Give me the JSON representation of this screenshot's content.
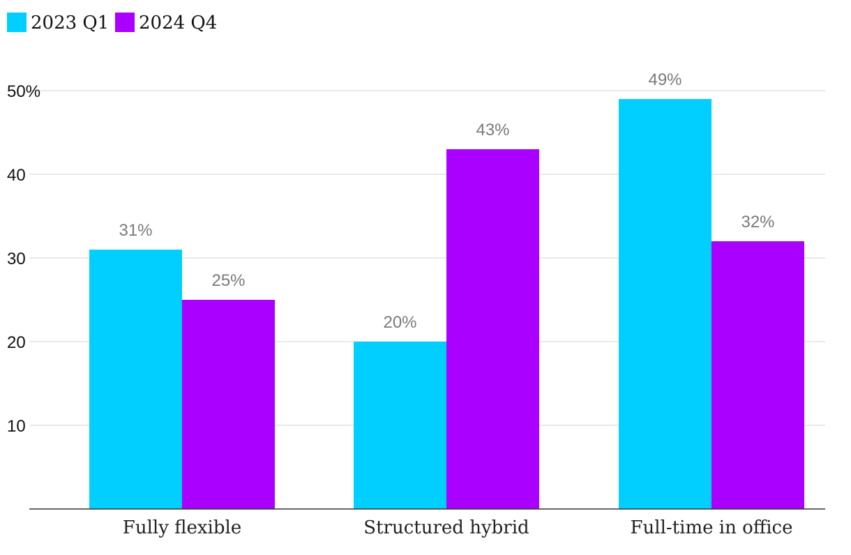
{
  "chart_data": {
    "type": "bar",
    "categories": [
      "Fully flexible",
      "Structured hybrid",
      "Full-time in office"
    ],
    "series": [
      {
        "name": "2023 Q1",
        "values": [
          31,
          20,
          49
        ],
        "color": "#00CFFF",
        "labels": [
          "31%",
          "20%",
          "49%"
        ]
      },
      {
        "name": "2024 Q4",
        "values": [
          25,
          43,
          32
        ],
        "color": "#AA00FF",
        "labels": [
          "25%",
          "43%",
          "32%"
        ]
      }
    ],
    "ylim": [
      0,
      50
    ],
    "yticks": [
      10,
      20,
      30,
      40,
      50
    ],
    "ytick_labels": [
      "10",
      "20",
      "30",
      "40",
      "50%"
    ],
    "grid": true,
    "legend_position": "top-left",
    "title": "",
    "xlabel": "",
    "ylabel": ""
  }
}
